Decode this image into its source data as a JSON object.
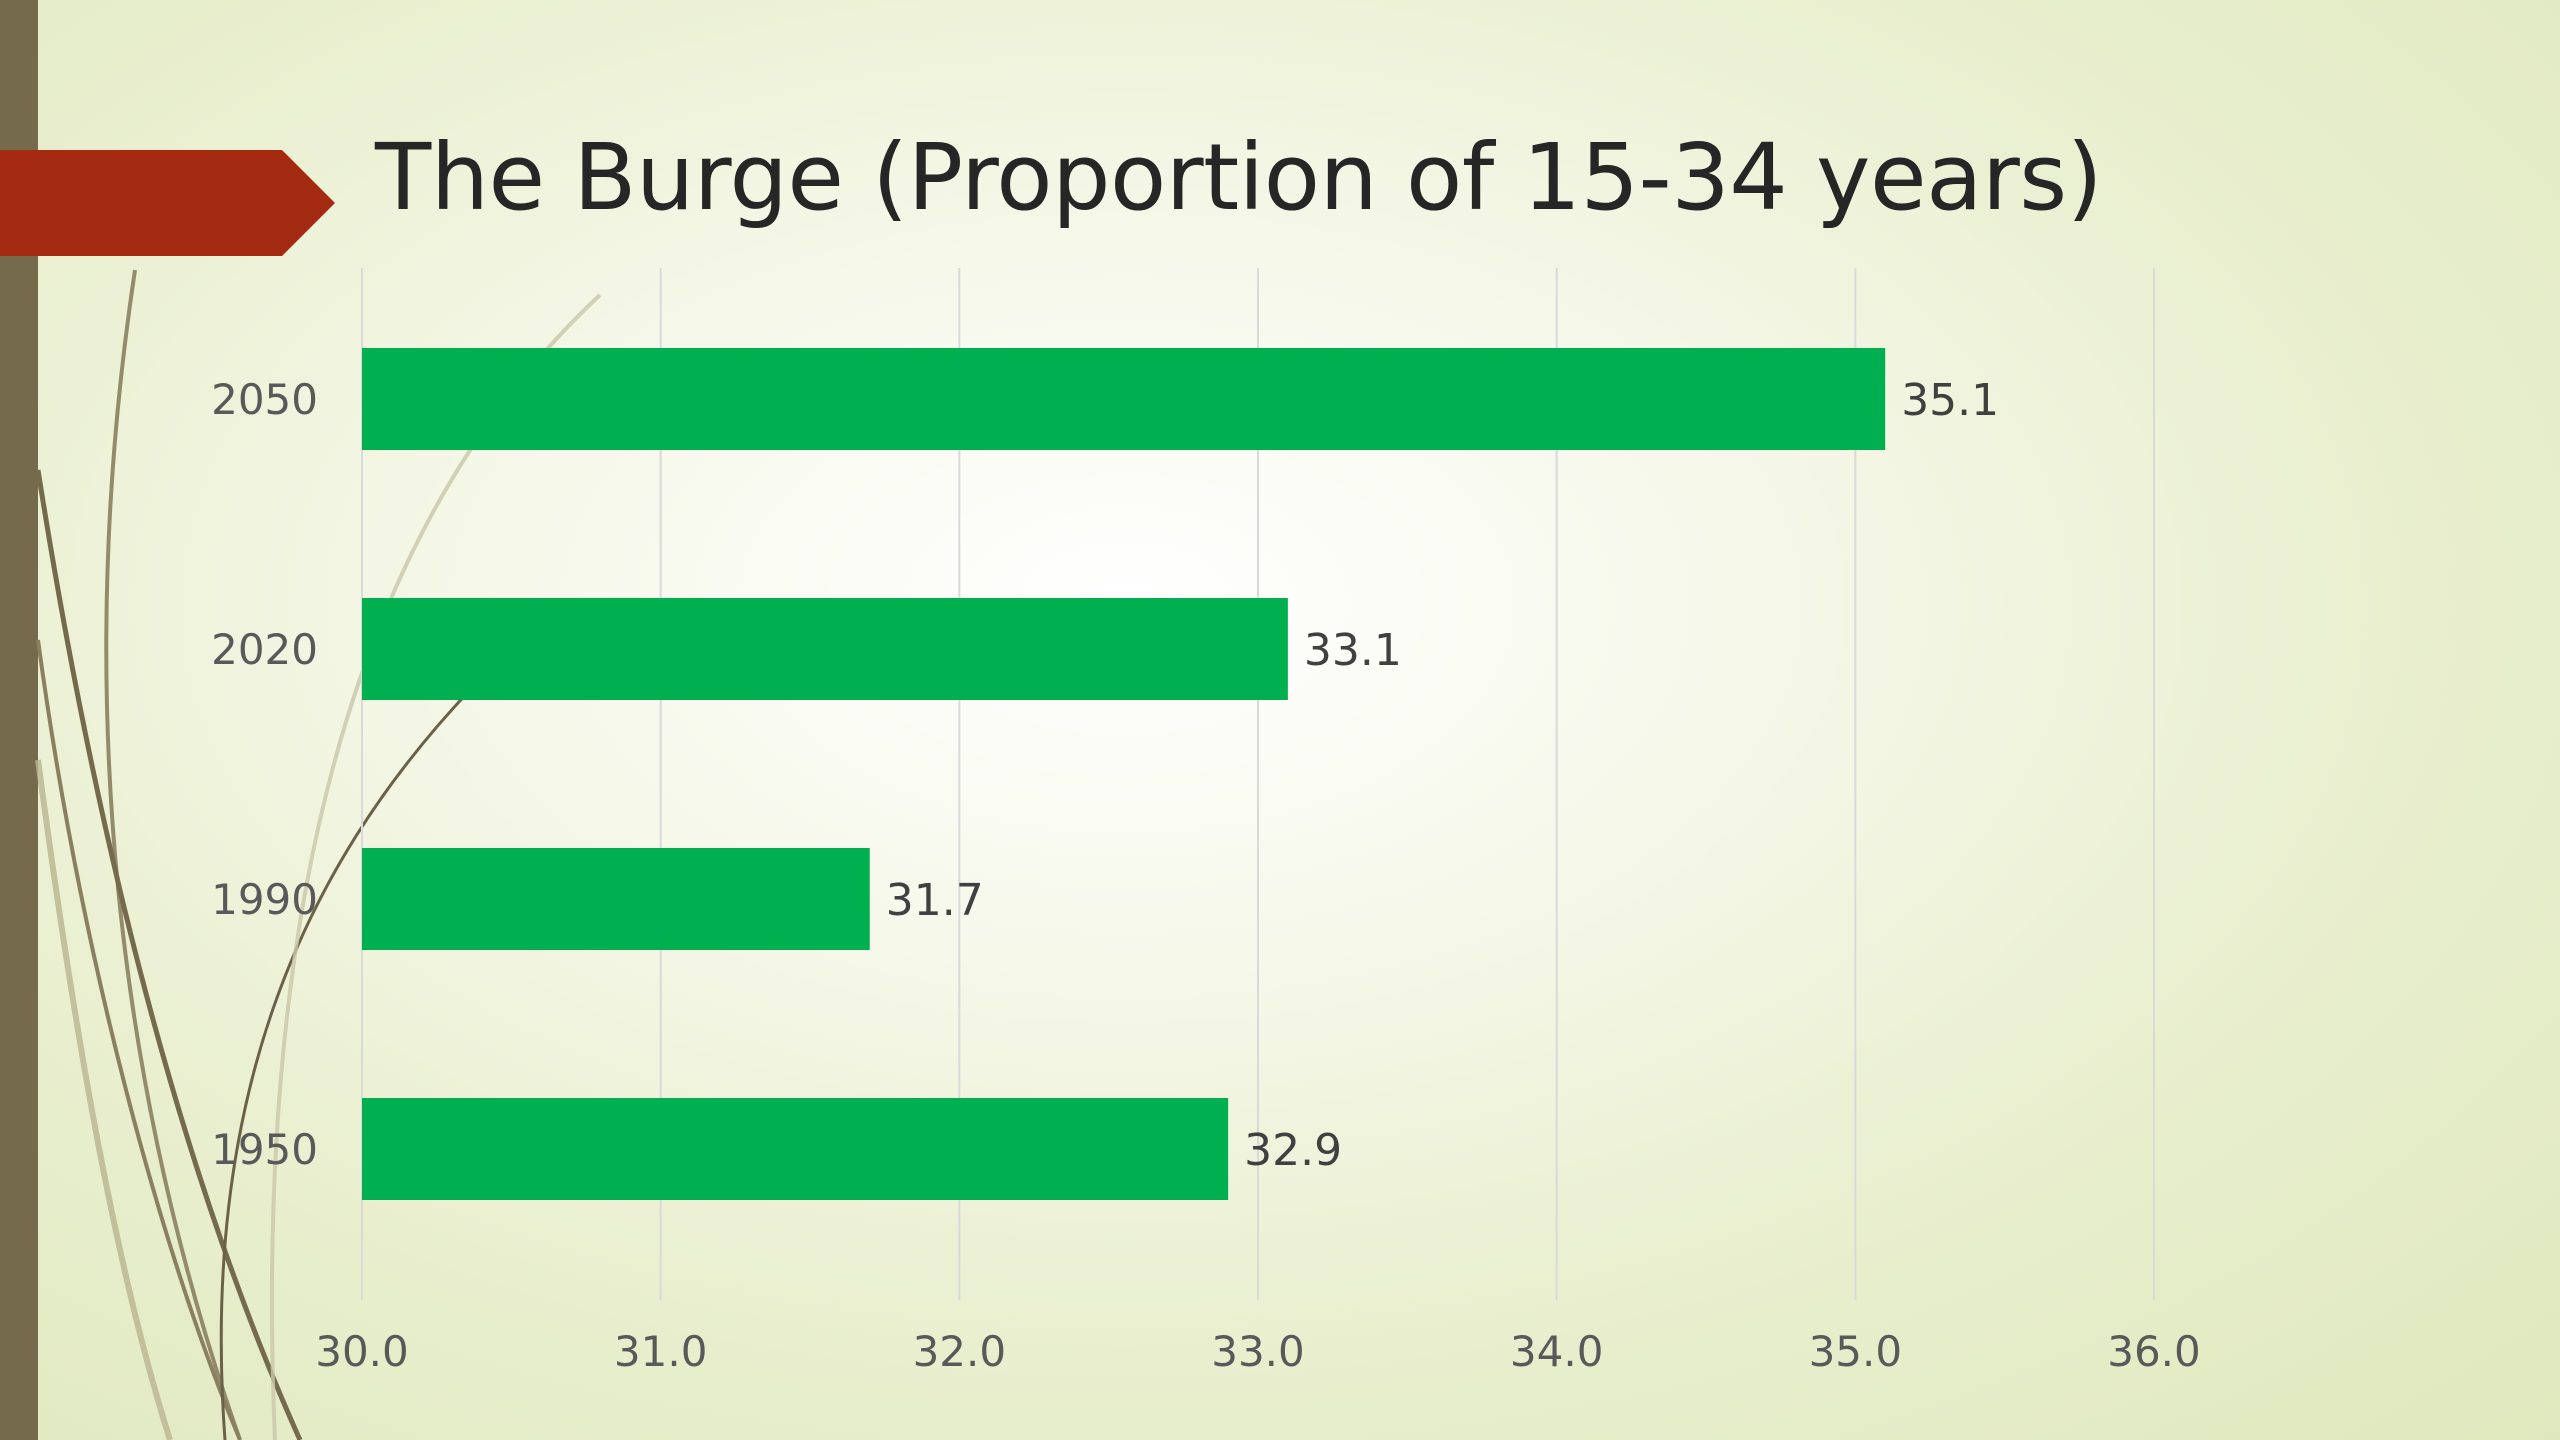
{
  "slide": {
    "title": "The Burge (Proportion of 15-34 years)"
  },
  "colors": {
    "bar": "#00b050",
    "accent_arrow": "#a52a12",
    "left_bar": "#756a4c",
    "gridline": "#d9d9d9"
  },
  "chart_data": {
    "type": "bar",
    "orientation": "horizontal",
    "title": "The Burge (Proportion of 15-34 years)",
    "xlabel": "",
    "ylabel": "",
    "categories": [
      "2050",
      "2020",
      "1990",
      "1950"
    ],
    "values": [
      35.1,
      33.1,
      31.7,
      32.9
    ],
    "data_labels": [
      "35.1",
      "33.1",
      "31.7",
      "32.9"
    ],
    "xlim": [
      30.0,
      36.0
    ],
    "x_ticks": [
      30.0,
      31.0,
      32.0,
      33.0,
      34.0,
      35.0,
      36.0
    ],
    "x_tick_labels": [
      "30.0",
      "31.0",
      "32.0",
      "33.0",
      "34.0",
      "35.0",
      "36.0"
    ],
    "grid": "vertical",
    "legend": "none"
  }
}
